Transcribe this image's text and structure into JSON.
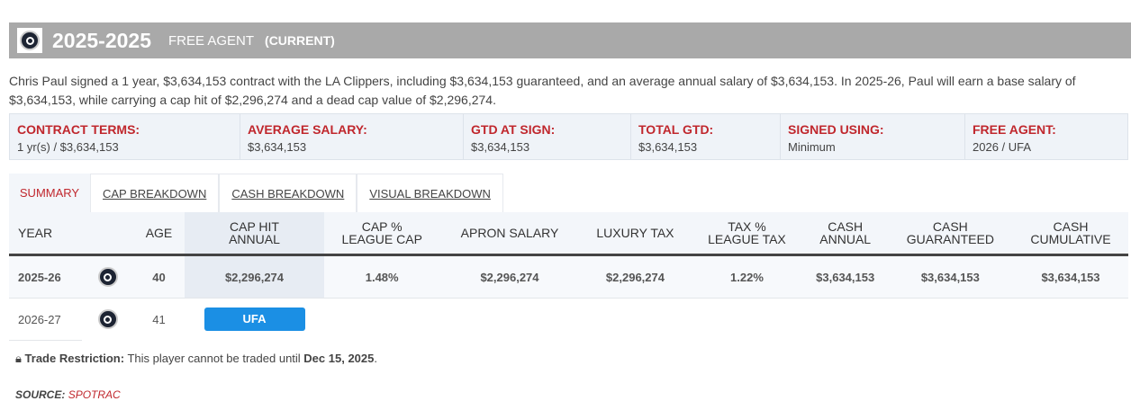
{
  "header": {
    "years": "2025-2025",
    "status": "FREE AGENT",
    "current": "(CURRENT)"
  },
  "description": "Chris Paul signed a 1 year, $3,634,153 contract with the LA Clippers, including $3,634,153 guaranteed, and an average annual salary of $3,634,153. In 2025-26, Paul will earn a base salary of $3,634,153, while carrying a cap hit of $2,296,274 and a dead cap value of $2,296,274.",
  "terms": [
    {
      "label": "CONTRACT TERMS:",
      "value": "1 yr(s) / $3,634,153"
    },
    {
      "label": "AVERAGE SALARY:",
      "value": "$3,634,153"
    },
    {
      "label": "GTD AT SIGN:",
      "value": "$3,634,153"
    },
    {
      "label": "TOTAL GTD:",
      "value": "$3,634,153"
    },
    {
      "label": "SIGNED USING:",
      "value": "Minimum"
    },
    {
      "label": "FREE AGENT:",
      "value": "2026 / UFA"
    }
  ],
  "tabs": [
    "SUMMARY",
    "CAP BREAKDOWN",
    "CASH BREAKDOWN",
    "VISUAL BREAKDOWN"
  ],
  "columns": [
    [
      "YEAR",
      ""
    ],
    [
      "",
      ""
    ],
    [
      "AGE",
      ""
    ],
    [
      "CAP HIT",
      "ANNUAL"
    ],
    [
      "CAP %",
      "LEAGUE CAP"
    ],
    [
      "APRON SALARY",
      ""
    ],
    [
      "LUXURY TAX",
      ""
    ],
    [
      "TAX %",
      "LEAGUE TAX"
    ],
    [
      "CASH",
      "ANNUAL"
    ],
    [
      "CASH",
      "GUARANTEED"
    ],
    [
      "CASH",
      "CUMULATIVE"
    ]
  ],
  "rows": [
    {
      "year": "2025-26",
      "age": "40",
      "cap_hit": "$2,296,274",
      "cap_pct": "1.48%",
      "apron": "$2,296,274",
      "lux": "$2,296,274",
      "tax_pct": "1.22%",
      "cash_annual": "$3,634,153",
      "cash_gtd": "$3,634,153",
      "cash_cum": "$3,634,153"
    },
    {
      "year": "2026-27",
      "age": "41",
      "badge": "UFA"
    }
  ],
  "trade": {
    "label": "Trade Restriction:",
    "text": " This player cannot be traded until ",
    "date": "Dec 15, 2025",
    "end": "."
  },
  "source": {
    "label": "SOURCE:",
    "value": "SPOTRAC"
  }
}
